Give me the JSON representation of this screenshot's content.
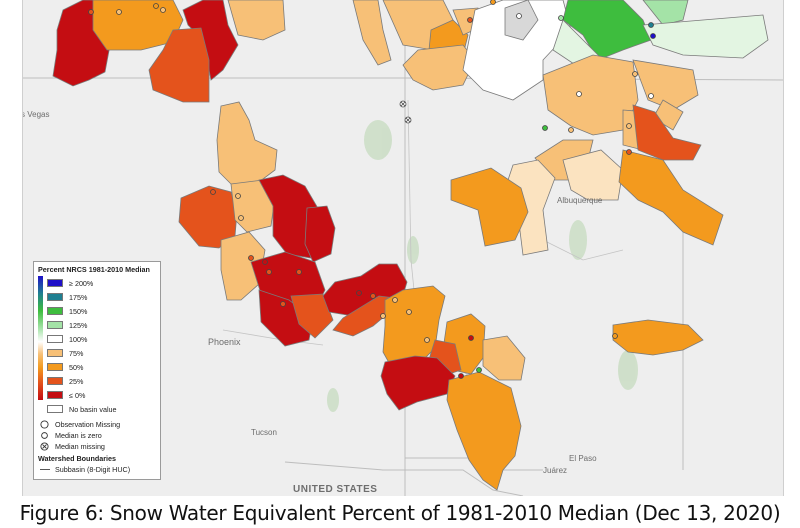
{
  "caption": "Figure 6: Snow Water Equivalent Percent of 1981-2010 Median (Dec 13, 2020)",
  "map": {
    "places": {
      "las_vegas": "s Vegas",
      "phoenix": "Phoenix",
      "tucson": "Tucson",
      "albuquerque": "Albuquerque",
      "el_paso": "El Paso",
      "juarez": "Juárez",
      "united_states": "UNITED STATES"
    }
  },
  "legend": {
    "title": "Percent NRCS 1981-2010 Median",
    "classes": [
      {
        "label": "≥ 200%",
        "color": "#1f10c8"
      },
      {
        "label": "175%",
        "color": "#1f7f91"
      },
      {
        "label": "150%",
        "color": "#3ebd3e"
      },
      {
        "label": "125%",
        "color": "#a4e3a7"
      },
      {
        "label": "100%",
        "color": "#ffffff"
      },
      {
        "label": "75%",
        "color": "#f7c077"
      },
      {
        "label": "50%",
        "color": "#f39a1e"
      },
      {
        "label": "25%",
        "color": "#e4531c"
      },
      {
        "label": "≤ 0%",
        "color": "#c40d12"
      },
      {
        "label": "No basin value",
        "color": "#ffffff"
      }
    ],
    "symbols": [
      {
        "label": "Observation Missing",
        "icon": "open-circle-icon"
      },
      {
        "label": "Median is zero",
        "icon": "small-open-circle-icon"
      },
      {
        "label": "Median missing",
        "icon": "circle-x-icon"
      }
    ],
    "boundaries_title": "Watershed Boundaries",
    "boundary_item": "Subbasin (8-Digit HUC)"
  }
}
